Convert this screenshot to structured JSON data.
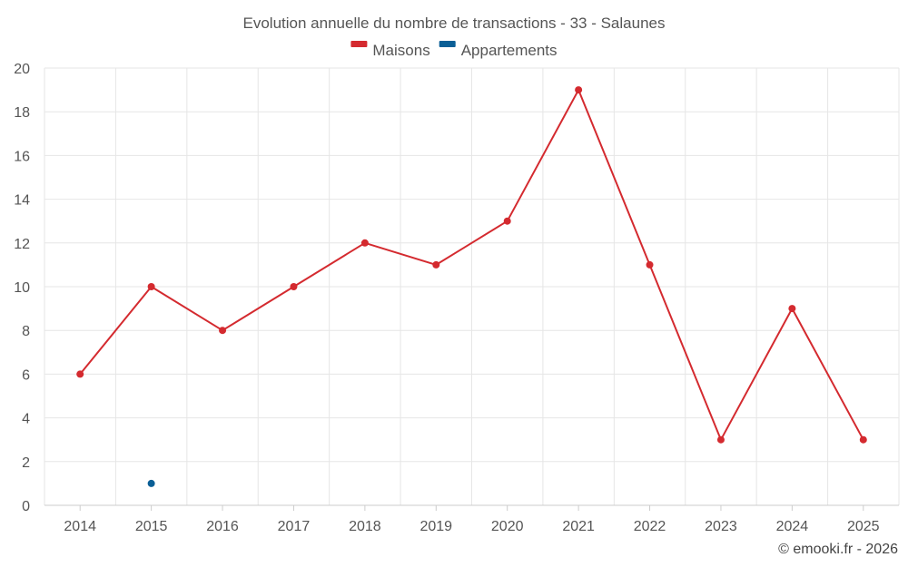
{
  "chart_data": {
    "type": "line",
    "title": "Evolution annuelle du nombre de transactions - 33 - Salaunes",
    "categories": [
      "2014",
      "2015",
      "2016",
      "2017",
      "2018",
      "2019",
      "2020",
      "2021",
      "2022",
      "2023",
      "2024",
      "2025"
    ],
    "series": [
      {
        "name": "Maisons",
        "color": "#d42a2f",
        "values": [
          6,
          10,
          8,
          10,
          12,
          11,
          13,
          19,
          11,
          3,
          9,
          3
        ]
      },
      {
        "name": "Appartements",
        "color": "#0a5f96",
        "values": [
          null,
          1,
          null,
          null,
          null,
          null,
          null,
          null,
          null,
          null,
          null,
          null
        ]
      }
    ],
    "ylim": [
      0,
      20
    ],
    "yticks": [
      0,
      2,
      4,
      6,
      8,
      10,
      12,
      14,
      16,
      18,
      20
    ],
    "grid": true,
    "legend": "top-center",
    "xlabel": "",
    "ylabel": ""
  },
  "credit": "© emooki.fr - 2026"
}
